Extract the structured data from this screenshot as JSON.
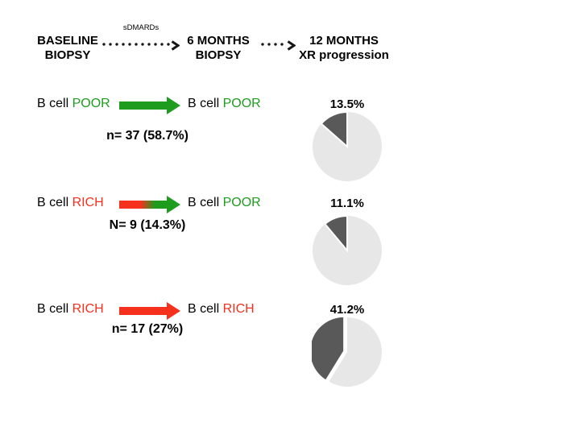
{
  "colors": {
    "green": "#1e9c1e",
    "red": "#f5311d",
    "pie_dark": "#595959",
    "pie_light": "#e7e7e7",
    "arrow_dots": "#161616",
    "text": "#000000"
  },
  "header": {
    "baseline_line1": "BASELINE",
    "baseline_line2": "BIOPSY",
    "sdmards_label": "sDMARDs",
    "six_months_line1": "6 MONTHS",
    "six_months_line2": "BIOPSY",
    "twelve_months_line1": "12 MONTHS",
    "twelve_months_line2": "XR progression"
  },
  "rows": [
    {
      "baseline_prefix": "B cell ",
      "baseline_status": "POOR",
      "baseline_status_color": "#1e9c1e",
      "arrow_type": "green",
      "followup_prefix": "B cell ",
      "followup_status": "POOR",
      "followup_status_color": "#1e9c1e",
      "count_label": "n= 37 (58.7%)",
      "pie_label": "13.5%",
      "pie_percent": 13.5,
      "pie_exploded": false
    },
    {
      "baseline_prefix": "B cell ",
      "baseline_status": "RICH",
      "baseline_status_color": "#f5311d",
      "arrow_type": "red-to-green",
      "followup_prefix": "B cell ",
      "followup_status": "POOR",
      "followup_status_color": "#1e9c1e",
      "count_label": "N= 9 (14.3%)",
      "pie_label": "11.1%",
      "pie_percent": 11.1,
      "pie_exploded": false
    },
    {
      "baseline_prefix": "B cell ",
      "baseline_status": "RICH",
      "baseline_status_color": "#f5311d",
      "arrow_type": "red",
      "followup_prefix": "B cell ",
      "followup_status": "RICH",
      "followup_status_color": "#f5311d",
      "count_label": "n= 17 (27%)",
      "pie_label": "41.2%",
      "pie_percent": 41.2,
      "pie_exploded": true
    }
  ],
  "chart_data": [
    {
      "type": "pie",
      "title": "13.5%",
      "labels": [
        "dark_slice",
        "light_slice"
      ],
      "values": [
        13.5,
        86.5
      ],
      "colors": [
        "#595959",
        "#e7e7e7"
      ],
      "start": "12 o'clock",
      "direction": "counterclockwise",
      "legend": false
    },
    {
      "type": "pie",
      "title": "11.1%",
      "labels": [
        "dark_slice",
        "light_slice"
      ],
      "values": [
        11.1,
        88.9
      ],
      "colors": [
        "#595959",
        "#e7e7e7"
      ],
      "start": "12 o'clock",
      "direction": "counterclockwise",
      "legend": false
    },
    {
      "type": "pie",
      "title": "41.2%",
      "labels": [
        "dark_slice",
        "light_slice"
      ],
      "values": [
        41.2,
        58.8
      ],
      "colors": [
        "#595959",
        "#e7e7e7"
      ],
      "start": "12 o'clock",
      "direction": "counterclockwise",
      "exploded_slice": "dark_slice",
      "legend": false
    }
  ]
}
